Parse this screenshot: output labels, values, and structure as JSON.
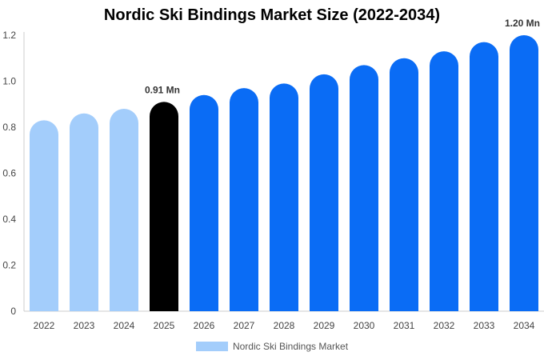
{
  "chart_data": {
    "type": "bar",
    "title": "Nordic Ski Bindings Market Size (2022-2034)",
    "categories": [
      "2022",
      "2023",
      "2024",
      "2025",
      "2026",
      "2027",
      "2028",
      "2029",
      "2030",
      "2031",
      "2032",
      "2033",
      "2034"
    ],
    "series": [
      {
        "name": "Nordic Ski Bindings Market",
        "values": [
          0.83,
          0.86,
          0.88,
          0.91,
          0.94,
          0.97,
          0.99,
          1.03,
          1.07,
          1.1,
          1.13,
          1.17,
          1.2
        ]
      }
    ],
    "bar_colors": [
      "#a3cdfb",
      "#a3cdfb",
      "#a3cdfb",
      "#000000",
      "#0a6cf5",
      "#0a6cf5",
      "#0a6cf5",
      "#0a6cf5",
      "#0a6cf5",
      "#0a6cf5",
      "#0a6cf5",
      "#0a6cf5",
      "#0a6cf5"
    ],
    "ylim": [
      0,
      1.2
    ],
    "yticks": [
      "0",
      "0.2",
      "0.4",
      "0.6",
      "0.8",
      "1.0",
      "1.2"
    ],
    "data_labels": [
      {
        "category": "2025",
        "text": "0.91 Mn"
      },
      {
        "category": "2034",
        "text": "1.20 Mn"
      }
    ],
    "xlabel": "",
    "ylabel": "",
    "grid": false,
    "legend_position": "bottom",
    "legend_color": "#a3cdfb"
  }
}
